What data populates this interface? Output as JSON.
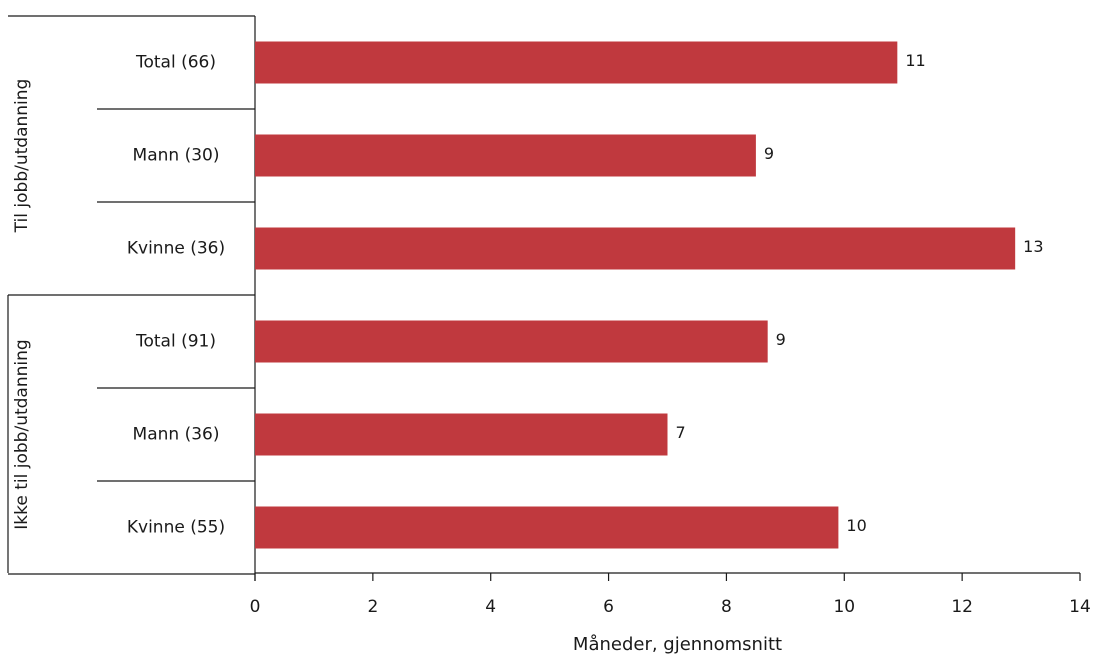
{
  "chart_data": {
    "type": "bar",
    "orientation": "horizontal",
    "groups": [
      {
        "label": "Til jobb/utdanning",
        "categories": [
          "Total (66)",
          "Mann (30)",
          "Kvinne (36)"
        ],
        "values": [
          10.9,
          8.5,
          12.9
        ],
        "data_labels": [
          "11",
          "9",
          "13"
        ]
      },
      {
        "label": "Ikke til jobb/utdanning",
        "categories": [
          "Total (91)",
          "Mann (36)",
          "Kvinne (55)"
        ],
        "values": [
          8.7,
          7.0,
          9.9
        ],
        "data_labels": [
          "9",
          "7",
          "10"
        ]
      }
    ],
    "xlabel": "Måneder, gjennomsnitt",
    "xlim": [
      0,
      14
    ],
    "xticks": [
      0,
      2,
      4,
      6,
      8,
      10,
      12,
      14
    ],
    "bar_color": "#c0393e",
    "grid": false,
    "legend": false
  }
}
